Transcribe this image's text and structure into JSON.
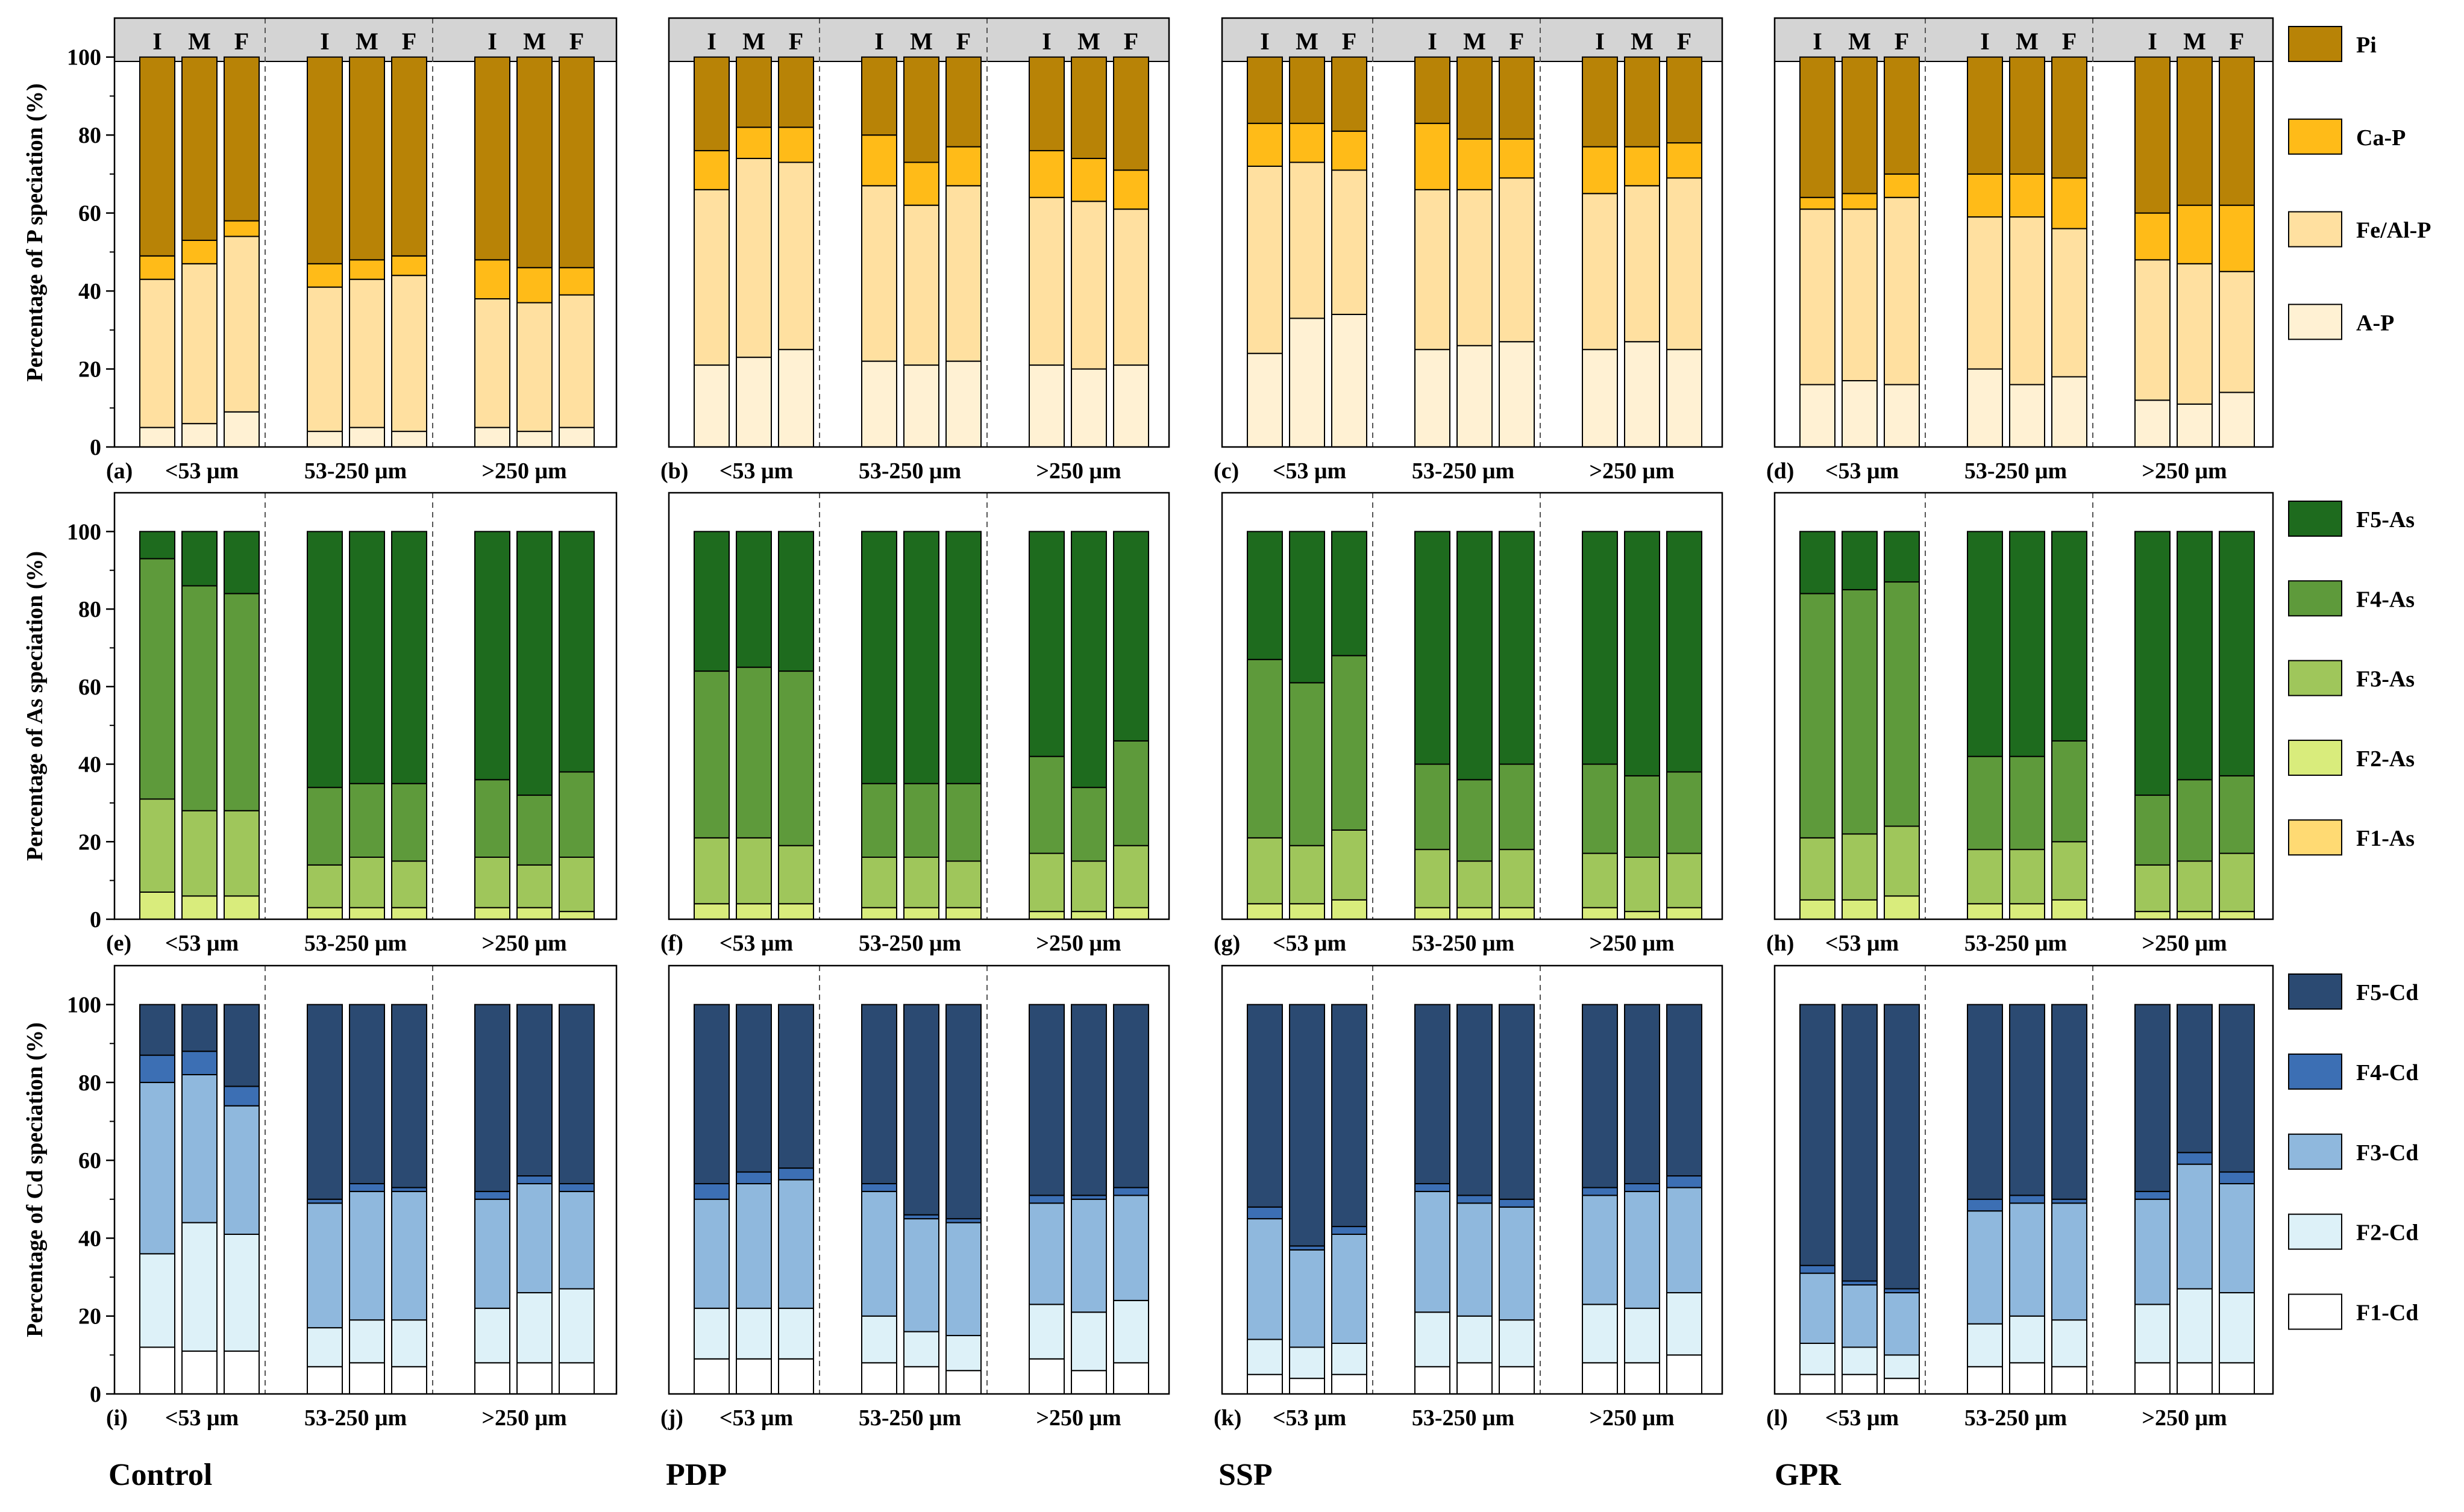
{
  "chart_data": {
    "type": "bar",
    "stacked": true,
    "ylim": [
      0,
      110
    ],
    "yticks": [
      0,
      20,
      40,
      60,
      80,
      100
    ],
    "columns": [
      "Control",
      "PDP",
      "SSP",
      "GPR"
    ],
    "size_groups": [
      "<53 μm",
      "53-250 μm",
      ">250 μm"
    ],
    "stage_labels": [
      "I",
      "M",
      "F"
    ],
    "rows": [
      {
        "element": "P",
        "ylabel": "Percentage of P speciation (%)",
        "legend": [
          "Pi",
          "Ca-P",
          "Fe/Al-P",
          "A-P"
        ],
        "stack_order": [
          "A-P",
          "Fe/Al-P",
          "Ca-P",
          "Pi"
        ],
        "colors": {
          "A-P": "#fff1d3",
          "Fe/Al-P": "#ffe0a0",
          "Ca-P": "#ffbb18",
          "Pi": "#b88306"
        },
        "panels": [
          {
            "letter": "(a)",
            "values": [
              [
                5,
                38,
                6,
                51
              ],
              [
                6,
                41,
                6,
                47
              ],
              [
                9,
                45,
                4,
                42
              ],
              [
                4,
                37,
                6,
                53
              ],
              [
                5,
                38,
                5,
                52
              ],
              [
                4,
                40,
                5,
                51
              ],
              [
                5,
                33,
                10,
                52
              ],
              [
                4,
                33,
                9,
                54
              ],
              [
                5,
                34,
                7,
                54
              ]
            ]
          },
          {
            "letter": "(b)",
            "values": [
              [
                21,
                45,
                10,
                24
              ],
              [
                23,
                51,
                8,
                18
              ],
              [
                25,
                48,
                9,
                18
              ],
              [
                22,
                45,
                13,
                20
              ],
              [
                21,
                41,
                11,
                27
              ],
              [
                22,
                45,
                10,
                23
              ],
              [
                21,
                43,
                12,
                24
              ],
              [
                20,
                43,
                11,
                26
              ],
              [
                21,
                40,
                10,
                29
              ]
            ]
          },
          {
            "letter": "(c)",
            "values": [
              [
                24,
                48,
                11,
                17
              ],
              [
                33,
                40,
                10,
                17
              ],
              [
                34,
                37,
                10,
                19
              ],
              [
                25,
                41,
                17,
                17
              ],
              [
                26,
                40,
                13,
                21
              ],
              [
                27,
                42,
                10,
                21
              ],
              [
                25,
                40,
                12,
                23
              ],
              [
                27,
                40,
                10,
                23
              ],
              [
                25,
                44,
                9,
                22
              ]
            ]
          },
          {
            "letter": "(d)",
            "values": [
              [
                16,
                45,
                3,
                36
              ],
              [
                17,
                44,
                4,
                35
              ],
              [
                16,
                48,
                6,
                30
              ],
              [
                20,
                39,
                11,
                30
              ],
              [
                16,
                43,
                11,
                30
              ],
              [
                18,
                38,
                13,
                31
              ],
              [
                12,
                36,
                12,
                40
              ],
              [
                11,
                36,
                15,
                38
              ],
              [
                14,
                31,
                17,
                38
              ]
            ]
          }
        ]
      },
      {
        "element": "As",
        "ylabel": "Percentage of As speciation (%)",
        "legend": [
          "F5-As",
          "F4-As",
          "F3-As",
          "F2-As",
          "F1-As"
        ],
        "stack_order": [
          "F1-As",
          "F2-As",
          "F3-As",
          "F4-As",
          "F5-As"
        ],
        "colors": {
          "F1-As": "#ffda73",
          "F2-As": "#d9ec7c",
          "F3-As": "#9fc65b",
          "F4-As": "#5e9a3b",
          "F5-As": "#1e6b1e"
        },
        "panels": [
          {
            "letter": "(e)",
            "values": [
              [
                0,
                7,
                24,
                62,
                7
              ],
              [
                0,
                6,
                22,
                58,
                14
              ],
              [
                0,
                6,
                22,
                56,
                16
              ],
              [
                0,
                3,
                11,
                20,
                66
              ],
              [
                0,
                3,
                13,
                19,
                65
              ],
              [
                0,
                3,
                12,
                20,
                65
              ],
              [
                0,
                3,
                13,
                20,
                64
              ],
              [
                0,
                3,
                11,
                18,
                68
              ],
              [
                0,
                2,
                14,
                22,
                62
              ]
            ]
          },
          {
            "letter": "(f)",
            "values": [
              [
                0,
                4,
                17,
                43,
                36
              ],
              [
                0,
                4,
                17,
                44,
                35
              ],
              [
                0,
                4,
                15,
                45,
                36
              ],
              [
                0,
                3,
                13,
                19,
                65
              ],
              [
                0,
                3,
                13,
                19,
                65
              ],
              [
                0,
                3,
                12,
                20,
                65
              ],
              [
                0,
                2,
                15,
                25,
                58
              ],
              [
                0,
                2,
                13,
                19,
                66
              ],
              [
                0,
                3,
                16,
                27,
                54
              ]
            ]
          },
          {
            "letter": "(g)",
            "values": [
              [
                0,
                4,
                17,
                46,
                33
              ],
              [
                0,
                4,
                15,
                42,
                39
              ],
              [
                0,
                5,
                18,
                45,
                32
              ],
              [
                0,
                3,
                15,
                22,
                60
              ],
              [
                0,
                3,
                12,
                21,
                64
              ],
              [
                0,
                3,
                15,
                22,
                60
              ],
              [
                0,
                3,
                14,
                23,
                60
              ],
              [
                0,
                2,
                14,
                21,
                63
              ],
              [
                0,
                3,
                14,
                21,
                62
              ]
            ]
          },
          {
            "letter": "(h)",
            "values": [
              [
                0,
                5,
                16,
                63,
                16
              ],
              [
                0,
                5,
                17,
                63,
                15
              ],
              [
                0,
                6,
                18,
                63,
                13
              ],
              [
                0,
                4,
                14,
                24,
                58
              ],
              [
                0,
                4,
                14,
                24,
                58
              ],
              [
                0,
                5,
                15,
                26,
                54
              ],
              [
                0,
                2,
                12,
                18,
                68
              ],
              [
                0,
                2,
                13,
                21,
                64
              ],
              [
                0,
                2,
                15,
                20,
                63
              ]
            ]
          }
        ]
      },
      {
        "element": "Cd",
        "ylabel": "Percentage of Cd speciation (%)",
        "legend": [
          "F5-Cd",
          "F4-Cd",
          "F3-Cd",
          "F2-Cd",
          "F1-Cd"
        ],
        "stack_order": [
          "F1-Cd",
          "F2-Cd",
          "F3-Cd",
          "F4-Cd",
          "F5-Cd"
        ],
        "colors": {
          "F1-Cd": "#ffffff",
          "F2-Cd": "#ddf1f8",
          "F3-Cd": "#8fb8dd",
          "F4-Cd": "#3c6fb4",
          "F5-Cd": "#2b4a72"
        },
        "panels": [
          {
            "letter": "(i)",
            "values": [
              [
                12,
                24,
                44,
                7,
                13
              ],
              [
                11,
                33,
                38,
                6,
                12
              ],
              [
                11,
                30,
                33,
                5,
                21
              ],
              [
                7,
                10,
                32,
                1,
                50
              ],
              [
                8,
                11,
                33,
                2,
                46
              ],
              [
                7,
                12,
                33,
                1,
                47
              ],
              [
                8,
                14,
                28,
                2,
                48
              ],
              [
                8,
                18,
                28,
                2,
                44
              ],
              [
                8,
                19,
                25,
                2,
                46
              ]
            ]
          },
          {
            "letter": "(j)",
            "values": [
              [
                9,
                13,
                28,
                4,
                46
              ],
              [
                9,
                13,
                32,
                3,
                43
              ],
              [
                9,
                13,
                33,
                3,
                42
              ],
              [
                8,
                12,
                32,
                2,
                46
              ],
              [
                7,
                9,
                29,
                1,
                54
              ],
              [
                6,
                9,
                29,
                1,
                55
              ],
              [
                9,
                14,
                26,
                2,
                49
              ],
              [
                6,
                15,
                29,
                1,
                49
              ],
              [
                8,
                16,
                27,
                2,
                47
              ]
            ]
          },
          {
            "letter": "(k)",
            "values": [
              [
                5,
                9,
                31,
                3,
                52
              ],
              [
                4,
                8,
                25,
                1,
                62
              ],
              [
                5,
                8,
                28,
                2,
                57
              ],
              [
                7,
                14,
                31,
                2,
                46
              ],
              [
                8,
                12,
                29,
                2,
                49
              ],
              [
                7,
                12,
                29,
                2,
                50
              ],
              [
                8,
                15,
                28,
                2,
                47
              ],
              [
                8,
                14,
                30,
                2,
                46
              ],
              [
                10,
                16,
                27,
                3,
                44
              ]
            ]
          },
          {
            "letter": "(l)",
            "values": [
              [
                5,
                8,
                18,
                2,
                67
              ],
              [
                5,
                7,
                16,
                1,
                71
              ],
              [
                4,
                6,
                16,
                1,
                73
              ],
              [
                7,
                11,
                29,
                3,
                50
              ],
              [
                8,
                12,
                29,
                2,
                49
              ],
              [
                7,
                12,
                30,
                1,
                50
              ],
              [
                8,
                15,
                27,
                2,
                48
              ],
              [
                8,
                19,
                32,
                3,
                38
              ],
              [
                8,
                18,
                28,
                3,
                43
              ]
            ]
          }
        ]
      }
    ]
  }
}
